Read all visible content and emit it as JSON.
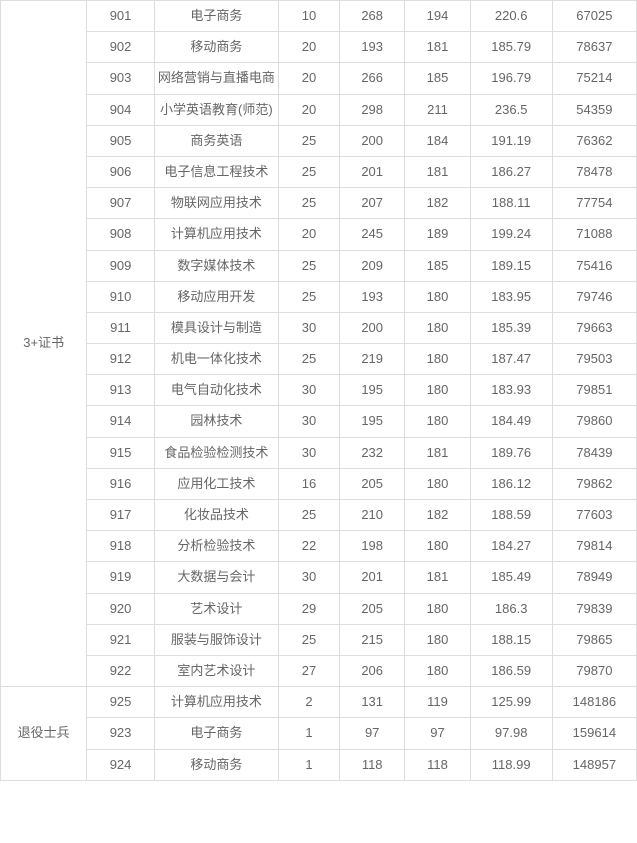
{
  "table": {
    "columns": [
      {
        "key": "category",
        "class": "col-cat"
      },
      {
        "key": "code",
        "class": "col-code"
      },
      {
        "key": "name",
        "class": "col-name"
      },
      {
        "key": "c4",
        "class": "col-n1"
      },
      {
        "key": "c5",
        "class": "col-n2"
      },
      {
        "key": "c6",
        "class": "col-n3"
      },
      {
        "key": "c7",
        "class": "col-n4"
      },
      {
        "key": "c8",
        "class": "col-n5"
      }
    ],
    "border_color": "#dddddd",
    "text_color": "#666666",
    "font_size": 13,
    "background_color": "#ffffff",
    "groups": [
      {
        "category": "3+证书",
        "rows": [
          {
            "code": "901",
            "name": "电子商务",
            "c4": "10",
            "c5": "268",
            "c6": "194",
            "c7": "220.6",
            "c8": "67025"
          },
          {
            "code": "902",
            "name": "移动商务",
            "c4": "20",
            "c5": "193",
            "c6": "181",
            "c7": "185.79",
            "c8": "78637"
          },
          {
            "code": "903",
            "name": "网络营销与直播电商",
            "c4": "20",
            "c5": "266",
            "c6": "185",
            "c7": "196.79",
            "c8": "75214"
          },
          {
            "code": "904",
            "name": "小学英语教育(师范)",
            "c4": "20",
            "c5": "298",
            "c6": "211",
            "c7": "236.5",
            "c8": "54359"
          },
          {
            "code": "905",
            "name": "商务英语",
            "c4": "25",
            "c5": "200",
            "c6": "184",
            "c7": "191.19",
            "c8": "76362"
          },
          {
            "code": "906",
            "name": "电子信息工程技术",
            "c4": "25",
            "c5": "201",
            "c6": "181",
            "c7": "186.27",
            "c8": "78478"
          },
          {
            "code": "907",
            "name": "物联网应用技术",
            "c4": "25",
            "c5": "207",
            "c6": "182",
            "c7": "188.11",
            "c8": "77754"
          },
          {
            "code": "908",
            "name": "计算机应用技术",
            "c4": "20",
            "c5": "245",
            "c6": "189",
            "c7": "199.24",
            "c8": "71088"
          },
          {
            "code": "909",
            "name": "数字媒体技术",
            "c4": "25",
            "c5": "209",
            "c6": "185",
            "c7": "189.15",
            "c8": "75416"
          },
          {
            "code": "910",
            "name": "移动应用开发",
            "c4": "25",
            "c5": "193",
            "c6": "180",
            "c7": "183.95",
            "c8": "79746"
          },
          {
            "code": "911",
            "name": "模具设计与制造",
            "c4": "30",
            "c5": "200",
            "c6": "180",
            "c7": "185.39",
            "c8": "79663"
          },
          {
            "code": "912",
            "name": "机电一体化技术",
            "c4": "25",
            "c5": "219",
            "c6": "180",
            "c7": "187.47",
            "c8": "79503"
          },
          {
            "code": "913",
            "name": "电气自动化技术",
            "c4": "30",
            "c5": "195",
            "c6": "180",
            "c7": "183.93",
            "c8": "79851"
          },
          {
            "code": "914",
            "name": "园林技术",
            "c4": "30",
            "c5": "195",
            "c6": "180",
            "c7": "184.49",
            "c8": "79860"
          },
          {
            "code": "915",
            "name": "食品检验检测技术",
            "c4": "30",
            "c5": "232",
            "c6": "181",
            "c7": "189.76",
            "c8": "78439"
          },
          {
            "code": "916",
            "name": "应用化工技术",
            "c4": "16",
            "c5": "205",
            "c6": "180",
            "c7": "186.12",
            "c8": "79862"
          },
          {
            "code": "917",
            "name": "化妆品技术",
            "c4": "25",
            "c5": "210",
            "c6": "182",
            "c7": "188.59",
            "c8": "77603"
          },
          {
            "code": "918",
            "name": "分析检验技术",
            "c4": "22",
            "c5": "198",
            "c6": "180",
            "c7": "184.27",
            "c8": "79814"
          },
          {
            "code": "919",
            "name": "大数据与会计",
            "c4": "30",
            "c5": "201",
            "c6": "181",
            "c7": "185.49",
            "c8": "78949"
          },
          {
            "code": "920",
            "name": "艺术设计",
            "c4": "29",
            "c5": "205",
            "c6": "180",
            "c7": "186.3",
            "c8": "79839"
          },
          {
            "code": "921",
            "name": "服装与服饰设计",
            "c4": "25",
            "c5": "215",
            "c6": "180",
            "c7": "188.15",
            "c8": "79865"
          },
          {
            "code": "922",
            "name": "室内艺术设计",
            "c4": "27",
            "c5": "206",
            "c6": "180",
            "c7": "186.59",
            "c8": "79870"
          }
        ]
      },
      {
        "category": "退役士兵",
        "rows": [
          {
            "code": "925",
            "name": "计算机应用技术",
            "c4": "2",
            "c5": "131",
            "c6": "119",
            "c7": "125.99",
            "c8": "148186"
          },
          {
            "code": "923",
            "name": "电子商务",
            "c4": "1",
            "c5": "97",
            "c6": "97",
            "c7": "97.98",
            "c8": "159614"
          },
          {
            "code": "924",
            "name": "移动商务",
            "c4": "1",
            "c5": "118",
            "c6": "118",
            "c7": "118.99",
            "c8": "148957"
          }
        ]
      }
    ]
  }
}
